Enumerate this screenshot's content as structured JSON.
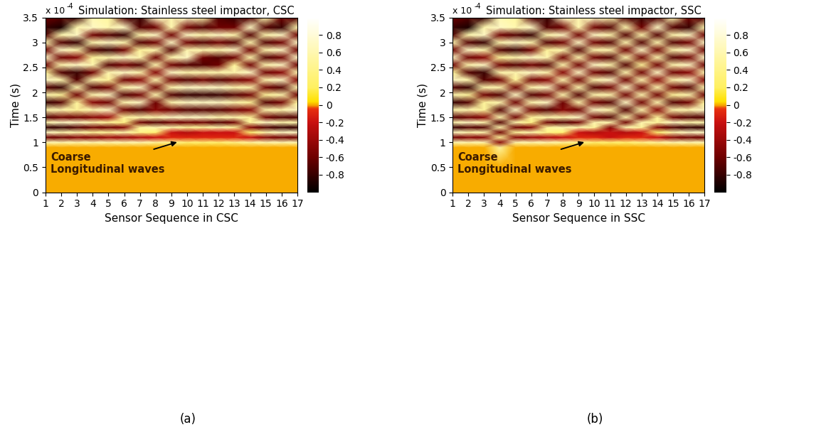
{
  "chart_data": [
    {
      "type": "heatmap",
      "title": "Simulation: Stainless steel impactor, CSC",
      "x_label": "Sensor Sequence in CSC",
      "y_label": "Time (s)",
      "multiplier": {
        "base": "x 10",
        "exponent": "-4"
      },
      "panel_label": "(a)",
      "annotations": [
        {
          "text": "Coarse\nLongitudinal waves"
        }
      ],
      "x": [
        1,
        2,
        3,
        4,
        5,
        6,
        7,
        8,
        9,
        10,
        11,
        12,
        13,
        14,
        15,
        16,
        17
      ],
      "y": [
        0,
        0.5,
        0.9,
        1.0,
        1.1,
        1.2,
        1.3,
        1.4,
        1.5,
        1.65,
        1.8,
        1.95,
        2.1,
        2.25,
        2.4,
        2.55,
        2.7,
        2.85,
        3.0,
        3.15,
        3.3,
        3.5
      ],
      "xlim": [
        1,
        17
      ],
      "xticks": [
        1,
        2,
        3,
        4,
        5,
        6,
        7,
        8,
        9,
        10,
        11,
        12,
        13,
        14,
        15,
        16,
        17
      ],
      "ylim": [
        0,
        3.5
      ],
      "yticks": [
        0,
        0.5,
        1,
        1.5,
        2,
        2.5,
        3,
        3.5
      ],
      "colorbar": {
        "range": [
          -1,
          1
        ],
        "ticks": [
          -0.8,
          -0.6,
          -0.4,
          -0.2,
          0,
          0.2,
          0.4,
          0.6,
          0.8
        ]
      },
      "cells": [
        [
          0,
          0,
          0,
          0,
          0,
          0,
          0,
          0,
          0,
          0,
          0,
          0,
          0,
          0,
          0,
          0,
          0
        ],
        [
          0,
          0,
          0,
          0,
          0,
          0,
          0,
          0,
          0,
          0,
          0,
          0,
          0,
          0,
          0,
          0,
          0
        ],
        [
          0,
          0,
          0,
          0,
          0,
          0,
          0,
          0,
          0,
          0,
          0,
          0,
          0,
          0,
          0,
          0,
          0
        ],
        [
          0.6,
          0.6,
          0.6,
          0.6,
          0.6,
          0.6,
          0.6,
          0.5,
          0.4,
          0.3,
          0.3,
          0.3,
          0.4,
          0.5,
          0.6,
          0.6,
          0.6
        ],
        [
          -0.6,
          -0.6,
          -0.5,
          -0.5,
          -0.4,
          -0.4,
          -0.3,
          -0.2,
          -0.1,
          -0.1,
          -0.1,
          -0.1,
          -0.1,
          -0.2,
          -0.5,
          -0.6,
          -0.6
        ],
        [
          0.7,
          0.6,
          0.6,
          0.5,
          0.5,
          0.6,
          0.4,
          0.3,
          -0.2,
          -0.3,
          -0.2,
          -0.2,
          -0.2,
          0.3,
          0.6,
          0.7,
          0.7
        ],
        [
          -0.8,
          -0.8,
          -0.7,
          -0.6,
          -0.6,
          -0.5,
          0.5,
          0.6,
          0.6,
          0.5,
          0.5,
          0.6,
          0.5,
          -0.5,
          -0.7,
          -0.8,
          -0.8
        ],
        [
          0.6,
          0.7,
          0.7,
          0.6,
          0.5,
          0.4,
          -0.6,
          -0.7,
          -0.6,
          -0.6,
          -0.6,
          -0.7,
          -0.6,
          0.5,
          0.7,
          0.6,
          0.6
        ],
        [
          -0.7,
          -0.6,
          -0.6,
          -0.5,
          -0.4,
          0.5,
          0.6,
          0.6,
          0.7,
          0.7,
          0.7,
          0.6,
          0.6,
          0.5,
          -0.6,
          -0.7,
          -0.7
        ],
        [
          0.6,
          0.6,
          0.5,
          0.6,
          0.7,
          -0.6,
          -0.7,
          -0.5,
          -0.6,
          -0.7,
          -0.7,
          -0.7,
          -0.6,
          -0.5,
          0.6,
          0.6,
          0.7
        ],
        [
          -0.8,
          -0.7,
          0.5,
          -0.5,
          -0.6,
          0.6,
          0.7,
          -0.6,
          0.6,
          0.7,
          0.7,
          0.7,
          0.6,
          0.5,
          -0.7,
          -0.6,
          0.5
        ],
        [
          0.6,
          0.5,
          -0.6,
          0.6,
          0.7,
          -0.7,
          -0.6,
          0.6,
          -0.7,
          -0.8,
          -0.8,
          -0.8,
          -0.7,
          -0.6,
          0.5,
          0.6,
          -0.6
        ],
        [
          -0.7,
          -0.8,
          0.6,
          -0.7,
          -0.6,
          0.6,
          0.7,
          -0.6,
          0.6,
          0.7,
          0.7,
          0.7,
          0.6,
          0.6,
          -0.6,
          -0.7,
          0.6
        ],
        [
          0.7,
          0.6,
          -0.7,
          0.6,
          0.5,
          -0.6,
          -0.5,
          0.6,
          -0.6,
          -0.7,
          -0.6,
          -0.7,
          -0.6,
          -0.5,
          0.6,
          0.7,
          -0.5
        ],
        [
          0.5,
          -0.7,
          -0.8,
          -0.6,
          0.6,
          0.7,
          0.6,
          -0.5,
          0.7,
          0.6,
          0.6,
          0.6,
          0.6,
          0.7,
          -0.6,
          -0.5,
          0.6
        ],
        [
          -0.6,
          0.6,
          0.7,
          0.6,
          -0.7,
          -0.6,
          -0.7,
          0.6,
          -0.6,
          -0.7,
          -0.7,
          -0.6,
          0.5,
          -0.6,
          0.6,
          0.7,
          -0.6
        ],
        [
          0.7,
          -0.6,
          -0.5,
          0.5,
          0.6,
          0.7,
          0.6,
          -0.6,
          0.6,
          0.7,
          -0.6,
          -0.7,
          -0.6,
          0.6,
          -0.7,
          -0.6,
          0.7
        ],
        [
          -0.6,
          0.7,
          0.6,
          -0.7,
          -0.8,
          -0.6,
          0.5,
          0.6,
          -0.7,
          0.6,
          0.6,
          0.6,
          0.7,
          -0.6,
          0.6,
          0.7,
          -0.6
        ],
        [
          0.6,
          -0.7,
          -0.8,
          0.6,
          0.7,
          0.6,
          -0.7,
          -0.6,
          0.7,
          -0.6,
          -0.7,
          -0.6,
          -0.7,
          0.6,
          -0.7,
          -0.6,
          0.7
        ],
        [
          -0.7,
          0.6,
          0.7,
          -0.6,
          -0.7,
          -0.8,
          0.6,
          0.7,
          -0.6,
          0.7,
          0.6,
          0.7,
          0.6,
          -0.7,
          0.6,
          0.7,
          -0.6
        ],
        [
          -0.8,
          -0.9,
          0.6,
          0.7,
          0.6,
          0.7,
          -0.7,
          -0.6,
          0.6,
          -0.6,
          -0.7,
          -0.6,
          -0.6,
          0.7,
          -0.7,
          -0.8,
          0.6
        ],
        [
          -0.6,
          -0.7,
          -0.8,
          0.6,
          0.5,
          -0.7,
          -0.8,
          0.7,
          0.6,
          0.7,
          0.6,
          -0.7,
          -0.8,
          -0.7,
          0.6,
          -0.6,
          -0.7
        ]
      ]
    },
    {
      "type": "heatmap",
      "title": "Simulation: Stainless steel impactor, SSC",
      "x_label": "Sensor Sequence in SSC",
      "y_label": "Time (s)",
      "multiplier": {
        "base": "x 10",
        "exponent": "-4"
      },
      "panel_label": "(b)",
      "annotations": [
        {
          "text": "Coarse\nLongitudinal waves"
        }
      ],
      "x": [
        1,
        2,
        3,
        4,
        5,
        6,
        7,
        8,
        9,
        10,
        11,
        12,
        13,
        14,
        15,
        16,
        17
      ],
      "y": [
        0,
        0.5,
        0.9,
        1.0,
        1.1,
        1.2,
        1.3,
        1.4,
        1.5,
        1.65,
        1.8,
        1.95,
        2.1,
        2.25,
        2.4,
        2.55,
        2.7,
        2.85,
        3.0,
        3.15,
        3.3,
        3.5
      ],
      "xlim": [
        1,
        17
      ],
      "xticks": [
        1,
        2,
        3,
        4,
        5,
        6,
        7,
        8,
        9,
        10,
        11,
        12,
        13,
        14,
        15,
        16,
        17
      ],
      "ylim": [
        0,
        3.5
      ],
      "yticks": [
        0,
        0.5,
        1,
        1.5,
        2,
        2.5,
        3,
        3.5
      ],
      "colorbar": {
        "range": [
          -1,
          1
        ],
        "ticks": [
          -0.8,
          -0.6,
          -0.4,
          -0.2,
          0,
          0.2,
          0.4,
          0.6,
          0.8
        ]
      },
      "cells": [
        [
          0,
          0,
          0,
          0,
          0,
          0,
          0,
          0,
          0,
          0,
          0,
          0,
          0,
          0,
          0,
          0,
          0
        ],
        [
          0,
          0,
          0,
          0,
          0,
          0,
          0,
          0,
          0,
          0,
          0,
          0,
          0,
          0,
          0,
          0,
          0
        ],
        [
          0,
          0,
          0,
          0.5,
          0,
          0,
          0,
          0,
          0,
          0,
          0,
          0,
          0,
          0,
          0,
          0,
          0
        ],
        [
          0.6,
          0.6,
          0.6,
          -0.5,
          0.6,
          0.6,
          0.6,
          0.5,
          0.4,
          0.3,
          0.3,
          0.3,
          0.4,
          0.5,
          0.6,
          0.6,
          0.6
        ],
        [
          -0.6,
          -0.5,
          -0.5,
          0.5,
          -0.5,
          -0.4,
          -0.3,
          -0.2,
          -0.1,
          -0.1,
          -0.2,
          -0.1,
          -0.1,
          -0.2,
          -0.5,
          -0.6,
          -0.6
        ],
        [
          0.7,
          0.6,
          0.6,
          -0.6,
          0.5,
          0.6,
          0.4,
          0.3,
          -0.2,
          -0.3,
          -0.2,
          -0.3,
          -0.2,
          0.3,
          0.6,
          0.7,
          0.7
        ],
        [
          -0.8,
          -0.7,
          -0.7,
          0.6,
          -0.6,
          -0.5,
          0.5,
          0.6,
          0.6,
          0.5,
          -0.5,
          0.6,
          0.5,
          -0.5,
          -0.7,
          -0.8,
          -0.8
        ],
        [
          0.6,
          0.7,
          0.6,
          -0.7,
          0.6,
          0.4,
          -0.6,
          -0.7,
          -0.6,
          0.6,
          0.6,
          -0.6,
          0.6,
          0.5,
          0.7,
          0.6,
          0.6
        ],
        [
          -0.7,
          -0.6,
          -0.5,
          0.6,
          -0.6,
          0.5,
          0.6,
          0.6,
          0.7,
          -0.6,
          -0.7,
          0.6,
          -0.6,
          0.5,
          -0.6,
          -0.7,
          -0.7
        ],
        [
          0.6,
          0.6,
          0.5,
          -0.7,
          0.7,
          -0.6,
          -0.7,
          -0.5,
          -0.6,
          0.7,
          0.6,
          -0.7,
          0.6,
          -0.5,
          0.6,
          0.6,
          0.7
        ],
        [
          -0.8,
          -0.7,
          0.5,
          0.6,
          -0.6,
          0.6,
          0.7,
          -0.6,
          0.6,
          -0.6,
          -0.7,
          0.7,
          -0.6,
          0.6,
          -0.7,
          -0.6,
          0.5
        ],
        [
          0.6,
          0.5,
          -0.6,
          -0.7,
          0.7,
          -0.7,
          -0.6,
          0.6,
          -0.7,
          0.6,
          0.6,
          -0.6,
          0.6,
          -0.6,
          0.5,
          0.6,
          -0.6
        ],
        [
          -0.7,
          -0.8,
          0.6,
          0.6,
          -0.6,
          0.6,
          0.7,
          -0.6,
          0.6,
          -0.7,
          -0.6,
          0.7,
          -0.6,
          0.6,
          -0.6,
          -0.7,
          0.6
        ],
        [
          0.7,
          0.6,
          -0.7,
          -0.6,
          0.5,
          -0.6,
          -0.5,
          0.6,
          -0.6,
          0.6,
          0.7,
          -0.6,
          0.6,
          -0.5,
          0.6,
          0.7,
          -0.5
        ],
        [
          0.5,
          -0.7,
          -0.8,
          0.6,
          0.6,
          0.7,
          0.6,
          -0.5,
          0.7,
          -0.6,
          -0.7,
          0.6,
          -0.6,
          0.7,
          -0.6,
          -0.5,
          0.6
        ],
        [
          -0.6,
          0.6,
          0.7,
          -0.6,
          -0.7,
          -0.6,
          -0.7,
          0.6,
          -0.6,
          0.7,
          0.6,
          -0.7,
          0.5,
          -0.6,
          0.6,
          0.7,
          -0.6
        ],
        [
          0.7,
          -0.6,
          -0.5,
          0.5,
          0.6,
          0.7,
          0.6,
          -0.6,
          0.6,
          -0.6,
          -0.7,
          0.6,
          -0.6,
          0.6,
          -0.7,
          -0.6,
          0.7
        ],
        [
          -0.6,
          0.7,
          0.6,
          -0.7,
          -0.8,
          -0.6,
          0.5,
          0.6,
          -0.7,
          0.6,
          0.6,
          -0.6,
          0.7,
          -0.6,
          0.6,
          0.7,
          -0.6
        ],
        [
          0.6,
          -0.7,
          -0.8,
          0.6,
          0.7,
          0.6,
          -0.7,
          -0.6,
          0.7,
          -0.6,
          -0.7,
          0.6,
          -0.7,
          0.6,
          -0.7,
          -0.6,
          0.7
        ],
        [
          -0.7,
          0.6,
          0.7,
          -0.6,
          -0.7,
          -0.8,
          0.6,
          0.7,
          -0.6,
          0.7,
          0.6,
          -0.7,
          0.6,
          -0.7,
          0.6,
          0.7,
          -0.6
        ],
        [
          -0.8,
          -0.9,
          0.6,
          0.7,
          0.6,
          0.7,
          -0.7,
          -0.6,
          0.6,
          -0.6,
          -0.7,
          0.6,
          -0.6,
          0.7,
          -0.7,
          -0.8,
          0.6
        ],
        [
          -0.6,
          -0.7,
          -0.8,
          0.6,
          0.5,
          -0.7,
          -0.8,
          0.7,
          0.6,
          0.7,
          0.6,
          -0.7,
          -0.8,
          -0.7,
          0.6,
          -0.6,
          -0.7
        ]
      ]
    }
  ]
}
